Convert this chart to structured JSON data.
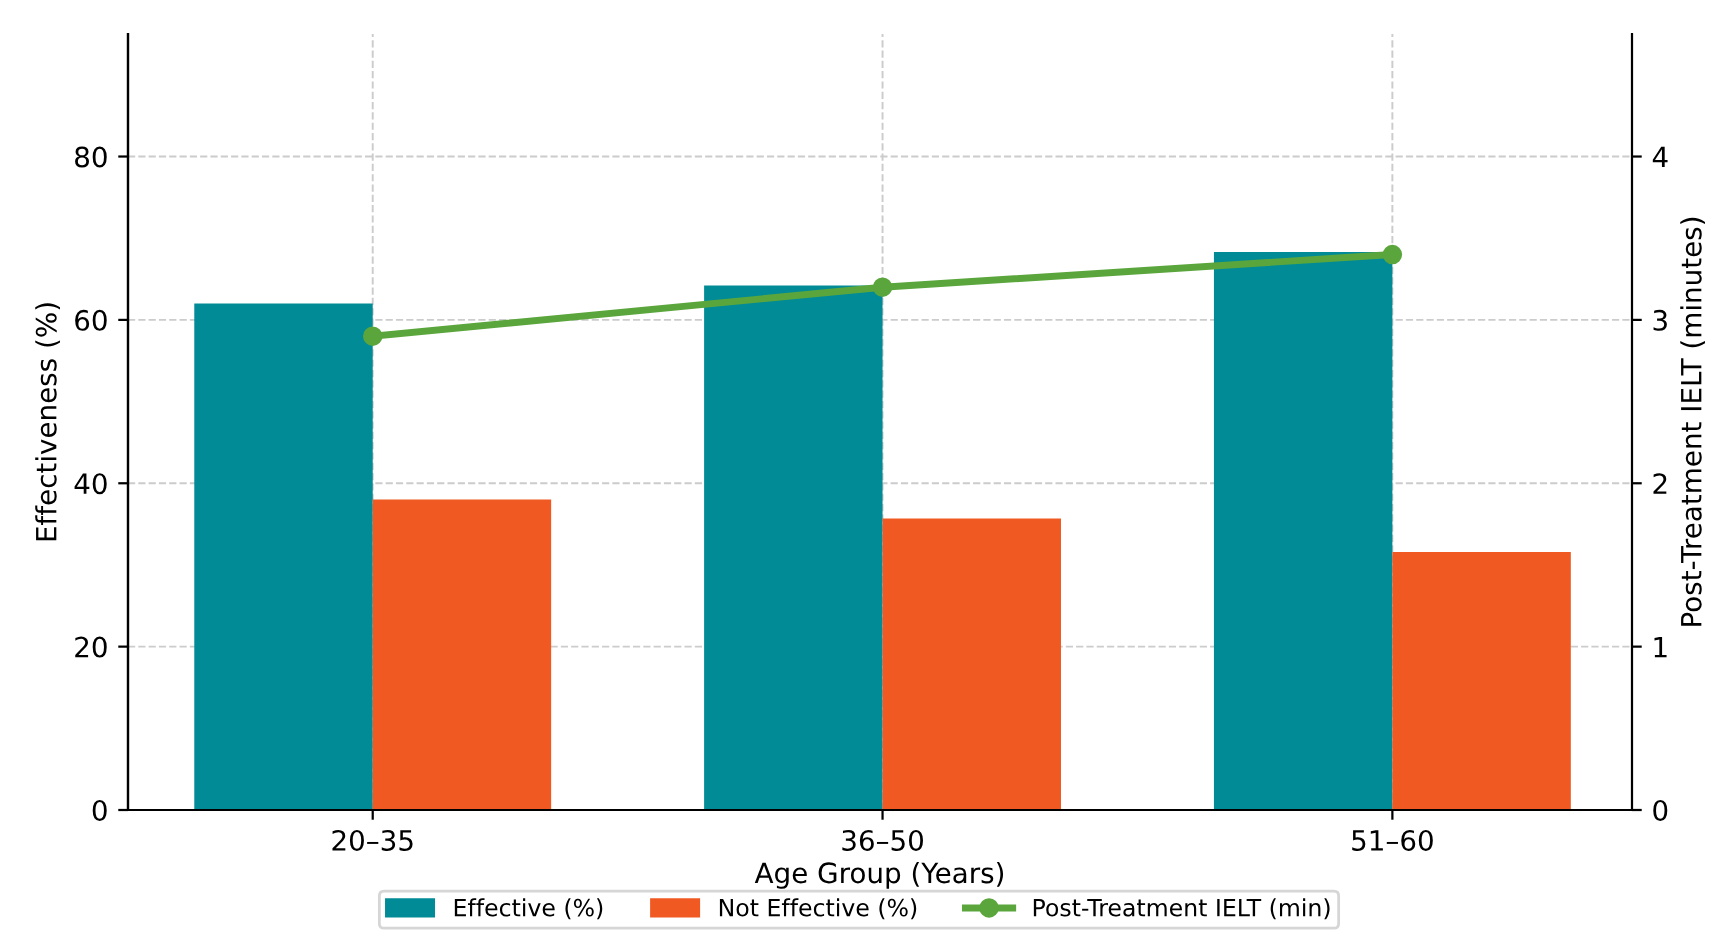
{
  "chart_data": {
    "type": "bar",
    "xlabel": "Age Group (Years)",
    "ylabel": "Effectiveness (%)",
    "y2label": "Post-Treatment IELT (minutes)",
    "categories": [
      "20–35",
      "36–50",
      "51–60"
    ],
    "series": [
      {
        "name": "Effective (%)",
        "color": "#008b96",
        "values": [
          62,
          64.2,
          68.3
        ]
      },
      {
        "name": "Not Effective (%)",
        "color": "#f05a22",
        "values": [
          38,
          35.7,
          31.6
        ]
      },
      {
        "name": "Post-Treatment IELT (min)",
        "type": "line",
        "axis": "y2",
        "color": "#5aa63c",
        "marker": "circle",
        "values": [
          2.9,
          3.2,
          3.4
        ]
      }
    ],
    "ylim": [
      0,
      95
    ],
    "yticks": [
      0,
      20,
      40,
      60,
      80
    ],
    "y2lim": [
      0,
      4.75
    ],
    "y2ticks": [
      0,
      1,
      2,
      3,
      4
    ],
    "grid": true,
    "legend": "bottom"
  }
}
